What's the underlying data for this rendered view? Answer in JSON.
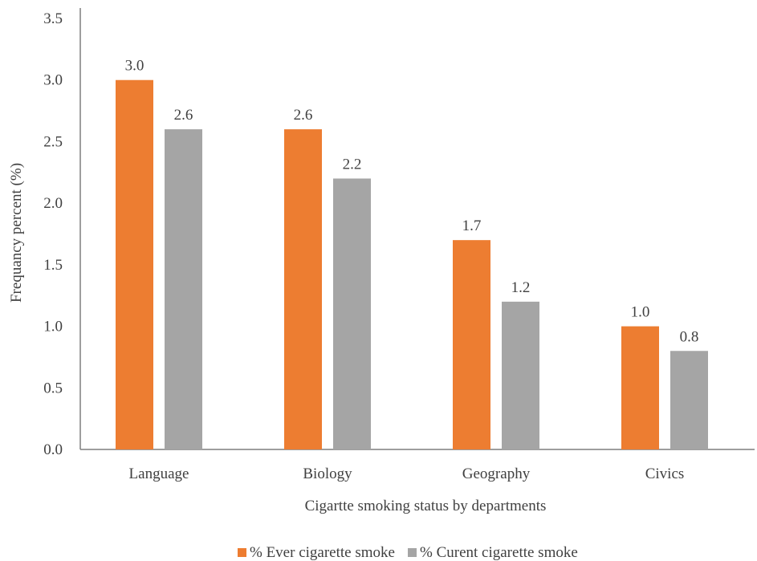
{
  "chart_data": {
    "type": "bar",
    "title": "",
    "xlabel": "Cigartte smoking status by departments",
    "ylabel": "Frequancy percent (%)",
    "ylim": [
      0,
      3.5
    ],
    "yticks": [
      "0.0",
      "0.5",
      "1.0",
      "1.5",
      "2.0",
      "2.5",
      "3.0",
      "3.5"
    ],
    "categories": [
      "Language",
      "Biology",
      "Geography",
      "Civics"
    ],
    "series": [
      {
        "name": "% Ever cigarette smoke",
        "color": "#ED7D31",
        "values": [
          3.0,
          2.6,
          1.7,
          1.0
        ],
        "labels": [
          "3.0",
          "2.6",
          "1.7",
          "1.0"
        ]
      },
      {
        "name": "% Curent cigarette smoke",
        "color": "#A5A5A5",
        "values": [
          2.6,
          2.2,
          1.2,
          0.8
        ],
        "labels": [
          "2.6",
          "2.2",
          "1.2",
          "0.8"
        ]
      }
    ],
    "grid": false,
    "legend_position": "bottom"
  }
}
